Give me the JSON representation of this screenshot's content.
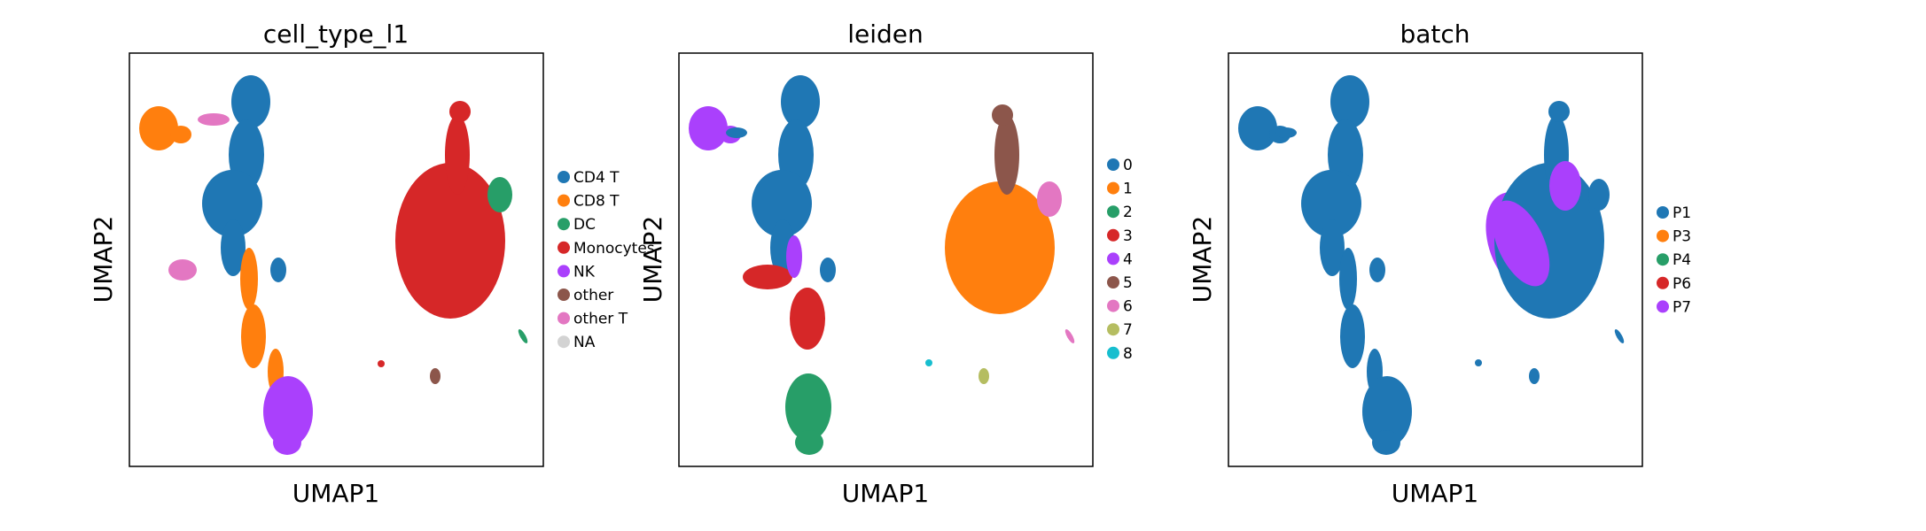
{
  "chart_data": [
    {
      "type": "scatter",
      "title": "cell_type_l1",
      "xlabel": "UMAP1",
      "ylabel": "UMAP2",
      "grid": false,
      "ticks": false,
      "legend_position": "right",
      "series": [
        {
          "name": "CD4 T",
          "color": "#1f77b4"
        },
        {
          "name": "CD8 T",
          "color": "#ff7f0e"
        },
        {
          "name": "DC",
          "color": "#279e68"
        },
        {
          "name": "Monocytes",
          "color": "#d62728"
        },
        {
          "name": "NK",
          "color": "#aa40fc"
        },
        {
          "name": "other",
          "color": "#8c564b"
        },
        {
          "name": "other T",
          "color": "#e377c2"
        },
        {
          "name": "NA",
          "color": "#d3d3d3"
        }
      ]
    },
    {
      "type": "scatter",
      "title": "leiden",
      "xlabel": "UMAP1",
      "ylabel": "UMAP2",
      "grid": false,
      "ticks": false,
      "legend_position": "right",
      "series": [
        {
          "name": "0",
          "color": "#1f77b4"
        },
        {
          "name": "1",
          "color": "#ff7f0e"
        },
        {
          "name": "2",
          "color": "#279e68"
        },
        {
          "name": "3",
          "color": "#d62728"
        },
        {
          "name": "4",
          "color": "#aa40fc"
        },
        {
          "name": "5",
          "color": "#8c564b"
        },
        {
          "name": "6",
          "color": "#e377c2"
        },
        {
          "name": "7",
          "color": "#b5bd61"
        },
        {
          "name": "8",
          "color": "#17becf"
        }
      ]
    },
    {
      "type": "scatter",
      "title": "batch",
      "xlabel": "UMAP1",
      "ylabel": "UMAP2",
      "grid": false,
      "ticks": false,
      "legend_position": "right",
      "series": [
        {
          "name": "P1",
          "color": "#1f77b4"
        },
        {
          "name": "P3",
          "color": "#ff7f0e"
        },
        {
          "name": "P4",
          "color": "#279e68"
        },
        {
          "name": "P6",
          "color": "#d62728"
        },
        {
          "name": "P7",
          "color": "#aa40fc"
        }
      ]
    }
  ]
}
